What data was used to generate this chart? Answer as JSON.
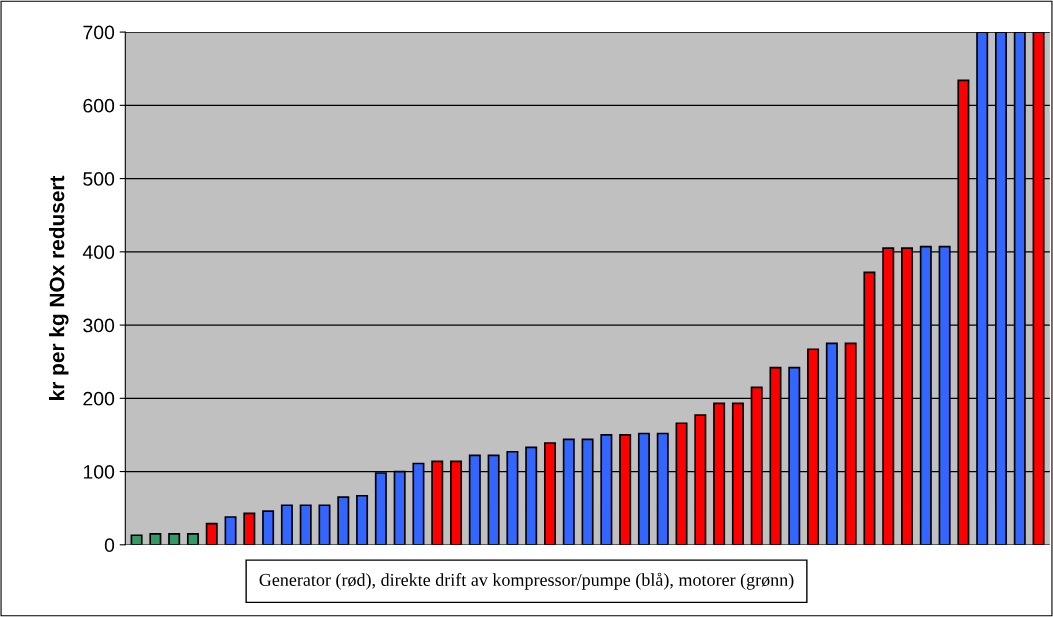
{
  "chart_data": {
    "type": "bar",
    "ylabel": "kr per kg NOx redusert",
    "categories": [
      null,
      null,
      null,
      null,
      null,
      null,
      null,
      null,
      null,
      null,
      null,
      null,
      null,
      null,
      null,
      null,
      null,
      null,
      null,
      null,
      null,
      null,
      null,
      null,
      null,
      null,
      null,
      null,
      null,
      null,
      null,
      null,
      null,
      null,
      null,
      null,
      null,
      null,
      null,
      null,
      null,
      null,
      null,
      null,
      null,
      null,
      null,
      null,
      null
    ],
    "values": [
      13,
      15,
      15,
      15,
      29,
      38,
      43,
      46,
      54,
      54,
      54,
      65,
      67,
      98,
      100,
      111,
      114,
      114,
      122,
      122,
      127,
      133,
      139,
      144,
      144,
      150,
      150,
      152,
      152,
      166,
      177,
      193,
      193,
      215,
      242,
      242,
      267,
      275,
      275,
      372,
      405,
      405,
      407,
      407,
      634,
      700,
      700,
      700,
      700
    ],
    "colors": [
      "#339966",
      "#339966",
      "#339966",
      "#339966",
      "#ff0000",
      "#3366ff",
      "#ff0000",
      "#3366ff",
      "#3366ff",
      "#3366ff",
      "#3366ff",
      "#3366ff",
      "#3366ff",
      "#3366ff",
      "#3366ff",
      "#3366ff",
      "#ff0000",
      "#ff0000",
      "#3366ff",
      "#3366ff",
      "#3366ff",
      "#3366ff",
      "#ff0000",
      "#3366ff",
      "#3366ff",
      "#3366ff",
      "#ff0000",
      "#3366ff",
      "#3366ff",
      "#ff0000",
      "#ff0000",
      "#ff0000",
      "#ff0000",
      "#ff0000",
      "#ff0000",
      "#3366ff",
      "#ff0000",
      "#3366ff",
      "#ff0000",
      "#ff0000",
      "#ff0000",
      "#ff0000",
      "#3366ff",
      "#3366ff",
      "#ff0000",
      "#3366ff",
      "#3366ff",
      "#3366ff",
      "#ff0000"
    ],
    "ylim": [
      0,
      700
    ],
    "yticks": [
      0,
      100,
      200,
      300,
      400,
      500,
      600,
      700
    ],
    "grid": "y",
    "legend": false,
    "annotations": [
      "Generator (rød), direkte drift av kompressor/pumpe (blå), motorer (grønn)"
    ]
  }
}
